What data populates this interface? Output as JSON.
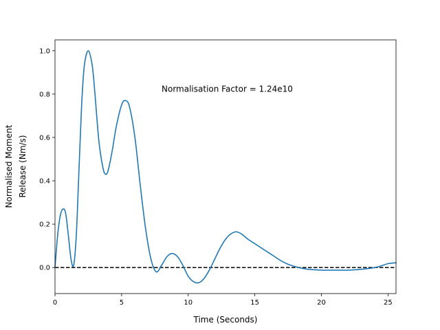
{
  "chart_data": {
    "type": "line",
    "title": "",
    "xlabel": "Time (Seconds)",
    "ylabel_lines": [
      "Normalised Moment",
      "Release (Nm/s)"
    ],
    "xlim": [
      0,
      25.6
    ],
    "ylim": [
      -0.12,
      1.05
    ],
    "xticks": [
      0,
      5,
      10,
      15,
      20,
      25
    ],
    "yticks": [
      0.0,
      0.2,
      0.4,
      0.6,
      0.8,
      1.0
    ],
    "ytick_labels": [
      "0.0",
      "0.2",
      "0.4",
      "0.6",
      "0.8",
      "1.0"
    ],
    "grid": false,
    "annotation": {
      "text": "Normalisation Factor = 1.24e10",
      "x": 8.0,
      "y": 0.81
    },
    "reference_line": {
      "y": 0.0,
      "style": "dashed",
      "color": "#000000"
    },
    "series": [
      {
        "color": "#1f77b4",
        "x": [
          0,
          0.2,
          0.4,
          0.6,
          0.8,
          1.0,
          1.2,
          1.4,
          1.6,
          1.8,
          2.0,
          2.2,
          2.5,
          2.8,
          3.0,
          3.3,
          3.6,
          3.8,
          4.0,
          4.3,
          4.6,
          5.0,
          5.3,
          5.6,
          6.0,
          6.4,
          6.8,
          7.2,
          7.6,
          8.0,
          8.4,
          8.8,
          9.2,
          9.6,
          10.0,
          10.4,
          10.8,
          11.2,
          11.6,
          12.0,
          12.4,
          12.8,
          13.2,
          13.6,
          14.0,
          14.5,
          15.0,
          15.5,
          16.0,
          16.5,
          17.0,
          17.5,
          18.0,
          18.5,
          19.0,
          20.0,
          21.0,
          22.0,
          23.0,
          24.0,
          24.5,
          25.0,
          25.6
        ],
        "y": [
          0.0,
          0.15,
          0.24,
          0.27,
          0.25,
          0.15,
          0.04,
          0.01,
          0.15,
          0.45,
          0.75,
          0.93,
          1.0,
          0.93,
          0.8,
          0.58,
          0.46,
          0.43,
          0.45,
          0.54,
          0.65,
          0.75,
          0.77,
          0.74,
          0.6,
          0.38,
          0.18,
          0.04,
          -0.02,
          0.01,
          0.05,
          0.065,
          0.05,
          0.01,
          -0.04,
          -0.065,
          -0.07,
          -0.05,
          -0.01,
          0.04,
          0.09,
          0.13,
          0.155,
          0.165,
          0.155,
          0.13,
          0.11,
          0.09,
          0.07,
          0.05,
          0.03,
          0.015,
          0.005,
          -0.003,
          -0.008,
          -0.012,
          -0.012,
          -0.012,
          -0.008,
          0.0,
          0.008,
          0.018,
          0.022
        ]
      }
    ]
  }
}
